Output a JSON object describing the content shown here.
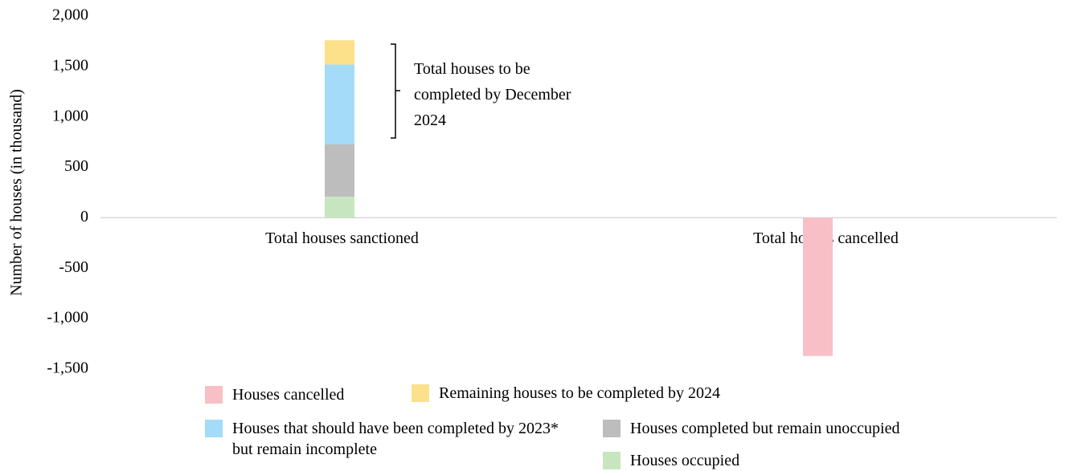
{
  "chart_data": {
    "type": "stacked_bar",
    "y_label": "Number of houses (in thousand)",
    "categories": [
      "Total houses sanctioned",
      "Total houses cancelled"
    ],
    "series": [
      {
        "name": "Houses cancelled",
        "color": "#f8bfc6",
        "values": [
          null,
          -1370
        ]
      },
      {
        "name": "Remaining houses to be completed by 2024",
        "color": "#fde08a",
        "values": [
          240,
          null
        ]
      },
      {
        "name": "Houses that should have been completed by 2023* but remain incomplete",
        "color": "#a3dbf8",
        "values": [
          790,
          null
        ]
      },
      {
        "name": "Houses completed but remain unoccupied",
        "color": "#bdbdbd",
        "values": [
          520,
          null
        ]
      },
      {
        "name": "Houses occupied",
        "color": "#c7e6bf",
        "values": [
          210,
          null
        ]
      }
    ],
    "annotation": "Total houses to be completed by December 2024",
    "ylim": [
      -1500,
      2000
    ],
    "yticks": [
      {
        "value": -1500,
        "label": "-1,500"
      },
      {
        "value": -1000,
        "label": "-1,000"
      },
      -500,
      0,
      500,
      {
        "value": 1000,
        "label": "1,000"
      },
      {
        "value": 1500,
        "label": "1,500"
      },
      {
        "value": 2000,
        "label": "2,000"
      }
    ],
    "grid": false
  }
}
